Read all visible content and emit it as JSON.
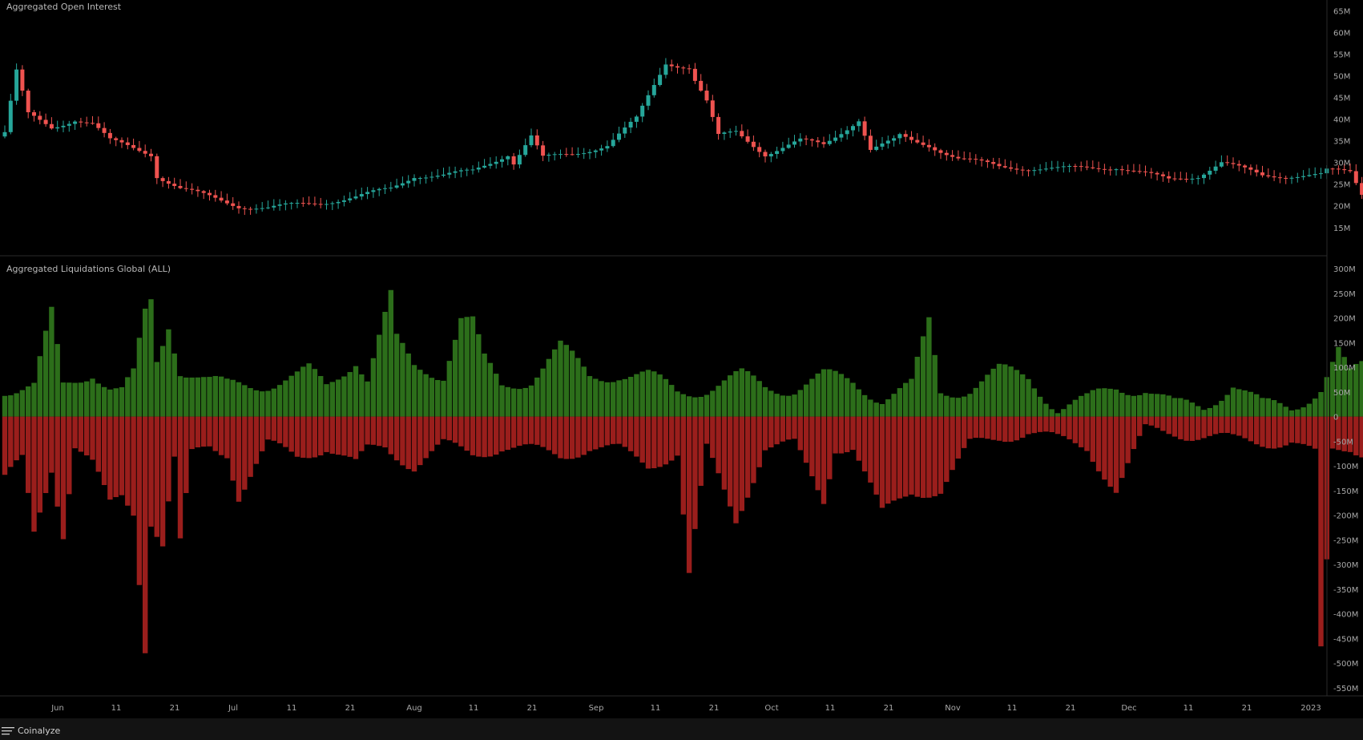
{
  "branding": {
    "name": "Coinalyze"
  },
  "chart_data": [
    {
      "type": "candlestick",
      "title": "Aggregated Open Interest",
      "ylim": [
        12,
        66
      ],
      "y_tick_labels": [
        "65M",
        "60M",
        "55M",
        "50M",
        "45M",
        "40M",
        "35M",
        "30M",
        "25M",
        "20M",
        "15M"
      ],
      "y_tick_values": [
        65,
        60,
        55,
        50,
        45,
        40,
        35,
        30,
        25,
        20,
        15
      ],
      "x_tick_labels": [
        "Jun",
        "11",
        "21",
        "Jul",
        "11",
        "21",
        "Aug",
        "11",
        "21",
        "Sep",
        "11",
        "21",
        "Oct",
        "11",
        "21",
        "Nov",
        "11",
        "21",
        "Dec",
        "11",
        "21",
        "2023"
      ],
      "colors": {
        "up": "#26a69a",
        "down": "#ef5350"
      },
      "close_waypoints": [
        [
          0,
          37
        ],
        [
          2,
          51
        ],
        [
          4,
          41
        ],
        [
          8,
          38
        ],
        [
          12,
          40
        ],
        [
          15,
          39
        ],
        [
          18,
          35
        ],
        [
          25,
          32
        ],
        [
          26,
          27
        ],
        [
          30,
          24
        ],
        [
          35,
          22
        ],
        [
          40,
          20
        ],
        [
          45,
          19.5
        ],
        [
          55,
          21
        ],
        [
          60,
          22
        ],
        [
          66,
          24
        ],
        [
          70,
          27
        ],
        [
          75,
          27
        ],
        [
          80,
          28
        ],
        [
          83,
          30
        ],
        [
          86,
          32
        ],
        [
          87,
          30
        ],
        [
          90,
          36
        ],
        [
          92,
          31
        ],
        [
          97,
          32
        ],
        [
          103,
          34
        ],
        [
          108,
          40
        ],
        [
          113,
          53
        ],
        [
          117,
          52
        ],
        [
          118,
          49
        ],
        [
          120,
          44
        ],
        [
          122,
          36
        ],
        [
          125,
          37
        ],
        [
          130,
          32
        ],
        [
          136,
          35
        ],
        [
          140,
          34
        ],
        [
          146,
          40
        ],
        [
          148,
          33
        ],
        [
          152,
          35
        ],
        [
          153,
          36
        ],
        [
          155,
          35
        ],
        [
          158,
          34
        ],
        [
          163,
          31
        ],
        [
          170,
          29
        ],
        [
          180,
          28.5
        ],
        [
          190,
          29
        ],
        [
          199,
          26
        ],
        [
          204,
          27
        ],
        [
          208,
          30
        ],
        [
          215,
          27
        ],
        [
          225,
          27
        ],
        [
          226,
          28
        ],
        [
          230,
          28
        ],
        [
          232,
          23
        ],
        [
          234,
          20
        ],
        [
          240,
          17
        ],
        [
          245,
          19
        ],
        [
          250,
          19
        ],
        [
          258,
          20
        ],
        [
          265,
          24
        ],
        [
          270,
          25
        ],
        [
          275,
          37
        ],
        [
          276,
          36
        ],
        [
          277,
          32
        ],
        [
          282,
          28
        ]
      ]
    },
    {
      "type": "bar",
      "title": "Aggregated Liquidations Global (ALL)",
      "ylim": [
        -560,
        310
      ],
      "y_tick_labels": [
        "300M",
        "250M",
        "200M",
        "150M",
        "100M",
        "50M",
        "0",
        "-50M",
        "-100M",
        "-150M",
        "-200M",
        "-250M",
        "-300M",
        "-350M",
        "-400M",
        "-450M",
        "-500M",
        "-550M"
      ],
      "y_tick_values": [
        300,
        250,
        200,
        150,
        100,
        50,
        0,
        -50,
        -100,
        -150,
        -200,
        -250,
        -300,
        -350,
        -400,
        -450,
        -500,
        -550
      ],
      "colors": {
        "long": "#2c6e1a",
        "short": "#9a1e1c"
      },
      "series": [
        {
          "name": "",
          "values_waypoints": [
            [
              0,
              60
            ],
            [
              5,
              60
            ],
            [
              8,
              205
            ],
            [
              10,
              60
            ],
            [
              15,
              95
            ],
            [
              18,
              60
            ],
            [
              20,
              50
            ],
            [
              22,
              80
            ],
            [
              24,
              205
            ],
            [
              25,
              230
            ],
            [
              26,
              110
            ],
            [
              28,
              190
            ],
            [
              30,
              100
            ],
            [
              32,
              90
            ],
            [
              35,
              70
            ],
            [
              38,
              60
            ],
            [
              45,
              70
            ],
            [
              50,
              80
            ],
            [
              52,
              90
            ],
            [
              55,
              60
            ],
            [
              60,
              120
            ],
            [
              62,
              80
            ],
            [
              66,
              240
            ],
            [
              67,
              150
            ],
            [
              70,
              100
            ],
            [
              75,
              90
            ],
            [
              78,
              200
            ],
            [
              80,
              190
            ],
            [
              82,
              110
            ],
            [
              85,
              60
            ],
            [
              90,
              80
            ],
            [
              95,
              140
            ],
            [
              100,
              80
            ],
            [
              105,
              90
            ],
            [
              110,
              80
            ],
            [
              115,
              50
            ],
            [
              120,
              60
            ],
            [
              126,
              80
            ],
            [
              130,
              60
            ],
            [
              135,
              60
            ],
            [
              140,
              80
            ],
            [
              145,
              70
            ],
            [
              150,
              40
            ],
            [
              155,
              60
            ],
            [
              158,
              190
            ],
            [
              160,
              50
            ],
            [
              165,
              60
            ],
            [
              170,
              90
            ],
            [
              175,
              80
            ],
            [
              180,
              20
            ],
            [
              185,
              30
            ],
            [
              190,
              60
            ],
            [
              195,
              60
            ],
            [
              200,
              20
            ],
            [
              205,
              20
            ],
            [
              210,
              70
            ],
            [
              215,
              20
            ],
            [
              220,
              20
            ],
            [
              225,
              60
            ],
            [
              228,
              130
            ],
            [
              230,
              80
            ],
            [
              232,
              100
            ],
            [
              235,
              70
            ],
            [
              240,
              50
            ],
            [
              244,
              130
            ],
            [
              247,
              100
            ],
            [
              250,
              40
            ],
            [
              255,
              80
            ],
            [
              258,
              20
            ],
            [
              262,
              60
            ],
            [
              265,
              10
            ],
            [
              270,
              30
            ],
            [
              275,
              60
            ],
            [
              276,
              10
            ],
            [
              280,
              15
            ],
            [
              282,
              5
            ]
          ]
        },
        {
          "name": "",
          "values_waypoints": [
            [
              0,
              -130
            ],
            [
              3,
              -90
            ],
            [
              5,
              -235
            ],
            [
              8,
              -100
            ],
            [
              10,
              -235
            ],
            [
              12,
              -60
            ],
            [
              15,
              -100
            ],
            [
              18,
              -180
            ],
            [
              20,
              -160
            ],
            [
              22,
              -190
            ],
            [
              24,
              -465
            ],
            [
              25,
              -210
            ],
            [
              27,
              -260
            ],
            [
              29,
              -90
            ],
            [
              30,
              -260
            ],
            [
              32,
              -80
            ],
            [
              35,
              -60
            ],
            [
              38,
              -70
            ],
            [
              40,
              -160
            ],
            [
              45,
              -60
            ],
            [
              50,
              -80
            ],
            [
              55,
              -60
            ],
            [
              60,
              -100
            ],
            [
              62,
              -70
            ],
            [
              65,
              -60
            ],
            [
              70,
              -100
            ],
            [
              75,
              -60
            ],
            [
              80,
              -75
            ],
            [
              85,
              -60
            ],
            [
              90,
              -70
            ],
            [
              95,
              -80
            ],
            [
              100,
              -60
            ],
            [
              105,
              -70
            ],
            [
              110,
              -100
            ],
            [
              115,
              -70
            ],
            [
              117,
              -320
            ],
            [
              120,
              -70
            ],
            [
              125,
              -210
            ],
            [
              130,
              -60
            ],
            [
              135,
              -60
            ],
            [
              140,
              -170
            ],
            [
              142,
              -60
            ],
            [
              145,
              -60
            ],
            [
              150,
              -200
            ],
            [
              155,
              -150
            ],
            [
              160,
              -150
            ],
            [
              165,
              -60
            ],
            [
              170,
              -40
            ],
            [
              175,
              -30
            ],
            [
              180,
              -50
            ],
            [
              185,
              -60
            ],
            [
              190,
              -150
            ],
            [
              195,
              -30
            ],
            [
              200,
              -30
            ],
            [
              205,
              -40
            ],
            [
              210,
              -50
            ],
            [
              215,
              -50
            ],
            [
              220,
              -50
            ],
            [
              224,
              -80
            ],
            [
              225,
              -480
            ],
            [
              226,
              -300
            ],
            [
              227,
              -70
            ],
            [
              230,
              -60
            ],
            [
              235,
              -80
            ],
            [
              240,
              -110
            ],
            [
              245,
              -40
            ],
            [
              250,
              -40
            ],
            [
              255,
              -70
            ],
            [
              260,
              -30
            ],
            [
              265,
              -30
            ],
            [
              270,
              -30
            ],
            [
              273,
              -30
            ],
            [
              274,
              -180
            ],
            [
              275,
              -30
            ],
            [
              280,
              -20
            ],
            [
              282,
              -10
            ]
          ]
        }
      ]
    }
  ]
}
